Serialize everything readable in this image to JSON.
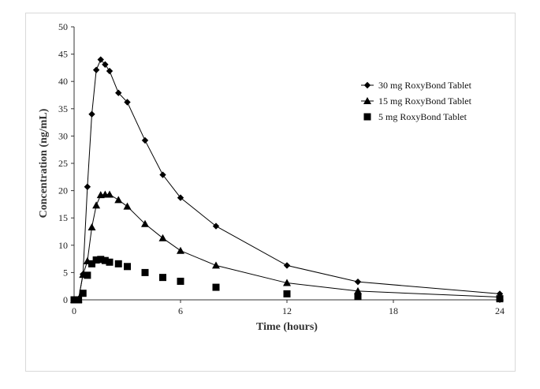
{
  "chart_data": {
    "type": "line",
    "title": "",
    "xlabel": "Time (hours)",
    "ylabel": "Concentration (ng/mL)",
    "xlim": [
      0,
      24
    ],
    "ylim": [
      0,
      50
    ],
    "xticks": [
      0,
      6,
      12,
      18,
      24
    ],
    "yticks": [
      0,
      5,
      10,
      15,
      20,
      25,
      30,
      35,
      40,
      45,
      50
    ],
    "grid": false,
    "legend_position": "top-right",
    "series": [
      {
        "name": "30 mg RoxyBond Tablet",
        "marker": "diamond",
        "line": true,
        "color": "#000000",
        "x": [
          0,
          0.25,
          0.5,
          0.75,
          1,
          1.25,
          1.5,
          1.75,
          2,
          2.5,
          3,
          4,
          5,
          6,
          8,
          12,
          16,
          24
        ],
        "y": [
          0,
          0.1,
          4.7,
          20.7,
          34,
          42.1,
          44,
          43.1,
          41.9,
          37.9,
          36.2,
          29.2,
          22.9,
          18.7,
          13.5,
          6.3,
          3.3,
          1.1
        ]
      },
      {
        "name": "15 mg RoxyBond Tablet",
        "marker": "triangle",
        "line": true,
        "color": "#000000",
        "x": [
          0,
          0.25,
          0.5,
          0.75,
          1,
          1.25,
          1.5,
          1.75,
          2,
          2.5,
          3,
          4,
          5,
          6,
          8,
          12,
          16,
          24
        ],
        "y": [
          0,
          0.1,
          4.6,
          7.1,
          13.3,
          17.3,
          19.2,
          19.3,
          19.3,
          18.3,
          17.1,
          13.9,
          11.3,
          9,
          6.3,
          3.1,
          1.6,
          0.5
        ]
      },
      {
        "name": "5 mg RoxyBond Tablet",
        "marker": "square",
        "line": false,
        "color": "#000000",
        "x": [
          0,
          0.25,
          0.5,
          0.75,
          1,
          1.25,
          1.5,
          1.75,
          2,
          2.5,
          3,
          4,
          5,
          6,
          8,
          12,
          16,
          24
        ],
        "y": [
          0,
          0,
          1.2,
          4.5,
          6.6,
          7.3,
          7.4,
          7.2,
          6.9,
          6.6,
          6.1,
          5,
          4.1,
          3.4,
          2.3,
          1.1,
          0.6,
          0.2
        ]
      }
    ]
  }
}
